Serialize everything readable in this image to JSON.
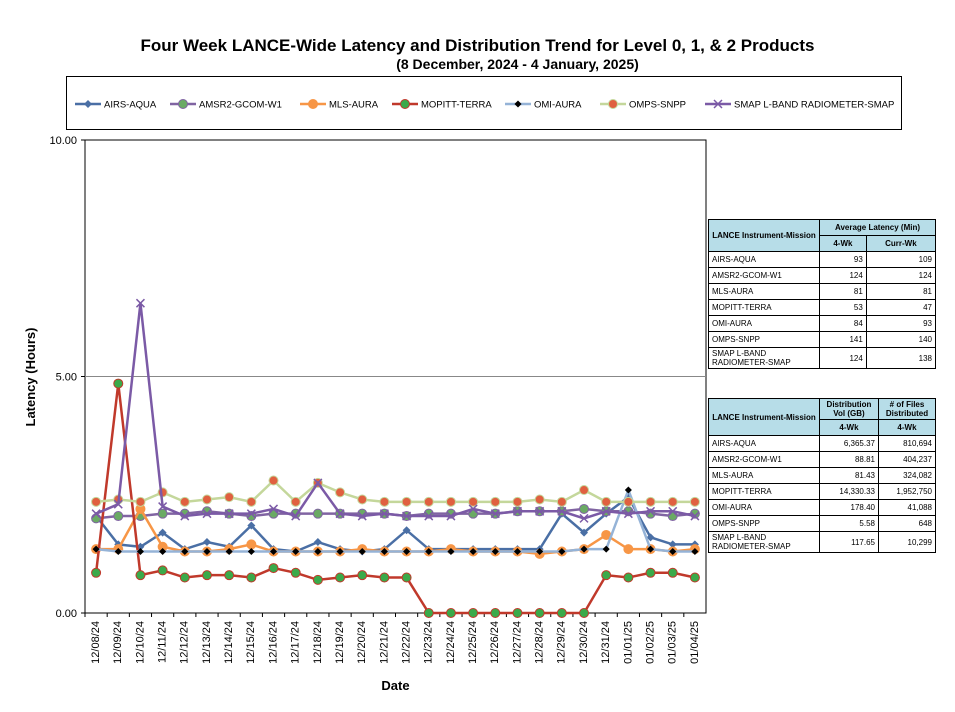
{
  "chart_data": {
    "type": "line",
    "title": "Four Week LANCE-Wide Latency and Distribution Trend for Level 0, 1, & 2 Products",
    "subtitle": "(8  December,  2024  -  4  January, 2025)",
    "xlabel": "Date",
    "ylabel": "Latency (Hours)",
    "ylim": [
      0,
      10
    ],
    "yticks": [
      "0.00",
      "5.00",
      "10.00"
    ],
    "legend_position": "top",
    "categories": [
      "12/08/24",
      "12/09/24",
      "12/10/24",
      "12/11/24",
      "12/12/24",
      "12/13/24",
      "12/14/24",
      "12/15/24",
      "12/16/24",
      "12/17/24",
      "12/18/24",
      "12/19/24",
      "12/20/24",
      "12/21/24",
      "12/22/24",
      "12/23/24",
      "12/24/24",
      "12/25/24",
      "12/26/24",
      "12/27/24",
      "12/28/24",
      "12/29/24",
      "12/30/24",
      "12/31/24",
      "01/01/25",
      "01/02/25",
      "01/03/25",
      "01/04/25"
    ],
    "series": [
      {
        "name": "AIRS-AQUA",
        "color": "#4a6fa5",
        "marker": "diamond",
        "values": [
          2.05,
          1.45,
          1.4,
          1.7,
          1.35,
          1.5,
          1.4,
          1.85,
          1.35,
          1.3,
          1.5,
          1.35,
          1.3,
          1.35,
          1.75,
          1.35,
          1.35,
          1.35,
          1.35,
          1.35,
          1.35,
          2.1,
          1.7,
          2.1,
          2.45,
          1.6,
          1.45,
          1.45
        ]
      },
      {
        "name": "AMSR2-GCOM-W1",
        "color": "#8064a2",
        "marker": "circle",
        "values": [
          2.0,
          2.05,
          2.05,
          2.1,
          2.1,
          2.15,
          2.1,
          2.05,
          2.1,
          2.1,
          2.1,
          2.1,
          2.1,
          2.1,
          2.05,
          2.1,
          2.1,
          2.1,
          2.1,
          2.15,
          2.15,
          2.15,
          2.2,
          2.15,
          2.15,
          2.1,
          2.05,
          2.1
        ]
      },
      {
        "name": "MLS-AURA",
        "color": "#f79646",
        "marker": "circle",
        "values": [
          1.35,
          1.35,
          2.2,
          1.4,
          1.3,
          1.3,
          1.35,
          1.45,
          1.3,
          1.3,
          1.3,
          1.3,
          1.35,
          1.3,
          1.3,
          1.3,
          1.35,
          1.3,
          1.3,
          1.3,
          1.25,
          1.3,
          1.35,
          1.65,
          1.35,
          1.35,
          1.3,
          1.35
        ]
      },
      {
        "name": "MOPITT-TERRA",
        "color": "#c0392b",
        "marker": "circle",
        "values": [
          0.85,
          4.85,
          0.8,
          0.9,
          0.75,
          0.8,
          0.8,
          0.75,
          0.95,
          0.85,
          0.7,
          0.75,
          0.8,
          0.75,
          0.75,
          0.0,
          0.0,
          0.0,
          0.0,
          0.0,
          0.0,
          0.0,
          0.0,
          0.8,
          0.75,
          0.85,
          0.85,
          0.75
        ]
      },
      {
        "name": "OMI-AURA",
        "color": "#95b3d7",
        "marker": "dash",
        "values": [
          1.35,
          1.3,
          1.3,
          1.3,
          1.3,
          1.3,
          1.3,
          1.3,
          1.3,
          1.3,
          1.3,
          1.3,
          1.3,
          1.3,
          1.3,
          1.3,
          1.3,
          1.3,
          1.3,
          1.3,
          1.3,
          1.3,
          1.35,
          1.35,
          2.6,
          1.35,
          1.3,
          1.3
        ]
      },
      {
        "name": "OMPS-SNPP",
        "color": "#c4d79b",
        "marker": "circle",
        "values": [
          2.35,
          2.4,
          2.35,
          2.55,
          2.35,
          2.4,
          2.45,
          2.35,
          2.8,
          2.35,
          2.75,
          2.55,
          2.4,
          2.35,
          2.35,
          2.35,
          2.35,
          2.35,
          2.35,
          2.35,
          2.4,
          2.35,
          2.6,
          2.35,
          2.35,
          2.35,
          2.35,
          2.35
        ]
      },
      {
        "name": "SMAP L-BAND RADIOMETER-SMAP",
        "color": "#7b5aa6",
        "marker": "x",
        "values": [
          2.1,
          2.3,
          6.55,
          2.25,
          2.05,
          2.1,
          2.1,
          2.1,
          2.2,
          2.05,
          2.75,
          2.1,
          2.05,
          2.1,
          2.05,
          2.05,
          2.05,
          2.2,
          2.1,
          2.15,
          2.15,
          2.15,
          2.0,
          2.15,
          2.1,
          2.15,
          2.15,
          2.05
        ]
      }
    ]
  },
  "latency_table": {
    "header_col1": "LANCE Instrument-Mission",
    "header_col2": "Average Latency (Min)",
    "sub1": "4-Wk",
    "sub2": "Curr-Wk",
    "rows": [
      {
        "name": "AIRS-AQUA",
        "a": "93",
        "b": "109"
      },
      {
        "name": "AMSR2-GCOM-W1",
        "a": "124",
        "b": "124"
      },
      {
        "name": "MLS-AURA",
        "a": "81",
        "b": "81"
      },
      {
        "name": "MOPITT-TERRA",
        "a": "53",
        "b": "47"
      },
      {
        "name": "OMI-AURA",
        "a": "84",
        "b": "93"
      },
      {
        "name": "OMPS-SNPP",
        "a": "141",
        "b": "140"
      },
      {
        "name": "SMAP L-BAND RADIOMETER-SMAP",
        "a": "124",
        "b": "138"
      }
    ]
  },
  "distribution_table": {
    "header_col1": "LANCE Instrument-Mission",
    "header_col2": "Distribution Vol (GB)",
    "header_col3": "# of Files Distributed",
    "sub1": "4-Wk",
    "sub2": "4-Wk",
    "rows": [
      {
        "name": "AIRS-AQUA",
        "a": "6,365.37",
        "b": "810,694"
      },
      {
        "name": "AMSR2-GCOM-W1",
        "a": "88.81",
        "b": "404,237"
      },
      {
        "name": "MLS-AURA",
        "a": "81.43",
        "b": "324,082"
      },
      {
        "name": "MOPITT-TERRA",
        "a": "14,330.33",
        "b": "1,952,750"
      },
      {
        "name": "OMI-AURA",
        "a": "178.40",
        "b": "41,088"
      },
      {
        "name": "OMPS-SNPP",
        "a": "5.58",
        "b": "648"
      },
      {
        "name": "SMAP L-BAND RADIOMETER-SMAP",
        "a": "117.65",
        "b": "10,299"
      }
    ]
  }
}
